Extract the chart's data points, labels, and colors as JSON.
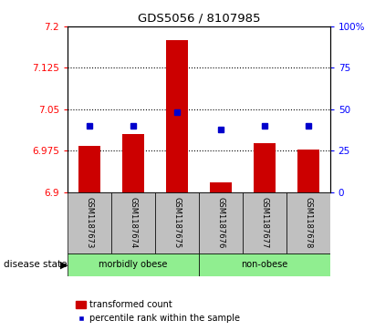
{
  "title": "GDS5056 / 8107985",
  "samples": [
    "GSM1187673",
    "GSM1187674",
    "GSM1187675",
    "GSM1187676",
    "GSM1187677",
    "GSM1187678"
  ],
  "bar_values": [
    6.983,
    7.005,
    7.175,
    6.918,
    6.988,
    6.977
  ],
  "bar_base": 6.9,
  "percentile_values": [
    40,
    40,
    48,
    38,
    40,
    40
  ],
  "ylim_left": [
    6.9,
    7.2
  ],
  "ylim_right": [
    0,
    100
  ],
  "yticks_left": [
    6.9,
    6.975,
    7.05,
    7.125,
    7.2
  ],
  "ytick_labels_left": [
    "6.9",
    "6.975",
    "7.05",
    "7.125",
    "7.2"
  ],
  "yticks_right": [
    0,
    25,
    50,
    75,
    100
  ],
  "ytick_labels_right": [
    "0",
    "25",
    "50",
    "75",
    "100%"
  ],
  "hlines": [
    6.975,
    7.05,
    7.125
  ],
  "bar_color": "#CC0000",
  "marker_color": "#0000CC",
  "group1_label": "morbidly obese",
  "group2_label": "non-obese",
  "group1_color": "#90EE90",
  "group2_color": "#90EE90",
  "group1_samples": [
    0,
    1,
    2
  ],
  "group2_samples": [
    3,
    4,
    5
  ],
  "disease_state_label": "disease state",
  "legend_bar_label": "transformed count",
  "legend_marker_label": "percentile rank within the sample",
  "tick_bg_color": "#C0C0C0",
  "bar_width": 0.5
}
